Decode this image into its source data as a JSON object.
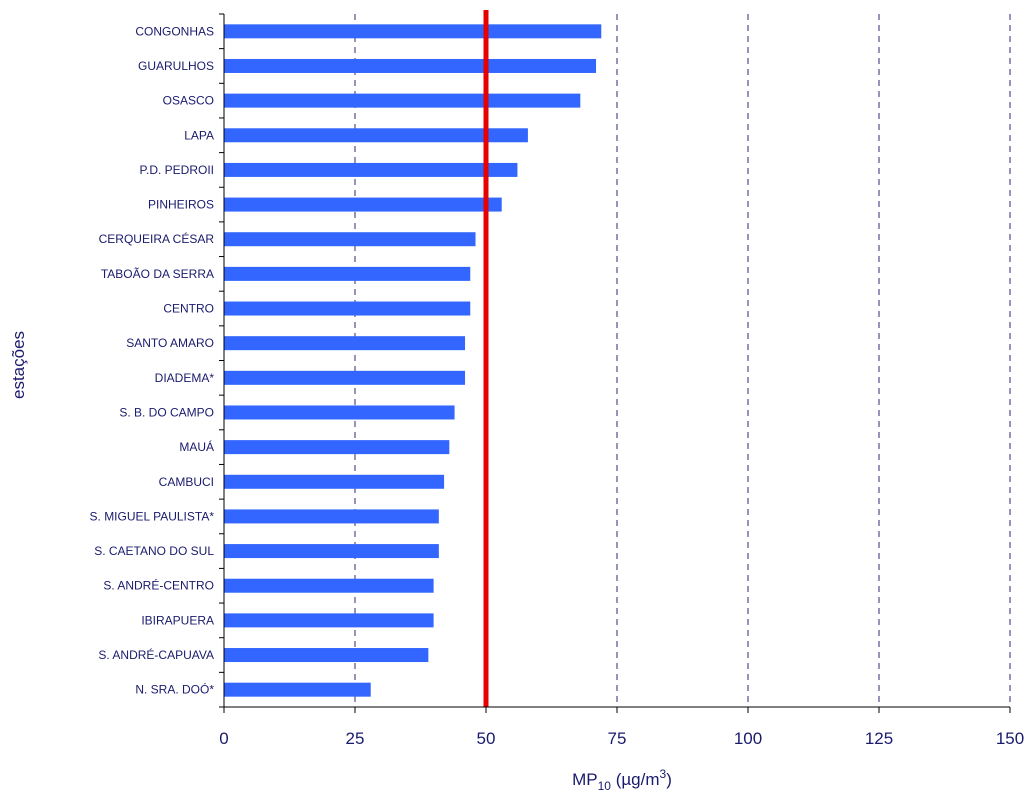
{
  "chart_data": {
    "type": "bar",
    "orientation": "horizontal",
    "categories": [
      "CONGONHAS",
      "GUARULHOS",
      "OSASCO",
      "LAPA",
      "P.D. PEDROII",
      "PINHEIROS",
      "CERQUEIRA CÉSAR",
      "TABOÃO DA SERRA",
      "CENTRO",
      "SANTO AMARO",
      "DIADEMA*",
      "S. B. DO CAMPO",
      "MAUÁ",
      "CAMBUCI",
      "S. MIGUEL PAULISTA*",
      "S. CAETANO DO SUL",
      "S. ANDRÉ-CENTRO",
      "IBIRAPUERA",
      "S. ANDRÉ-CAPUAVA",
      "N. SRA. DOÓ*"
    ],
    "values": [
      72,
      71,
      68,
      58,
      56,
      53,
      48,
      47,
      47,
      46,
      46,
      44,
      43,
      42,
      41,
      41,
      40,
      40,
      39,
      28
    ],
    "xlim": [
      0,
      150
    ],
    "xticks": [
      "0",
      "25",
      "50",
      "75",
      "100",
      "125",
      "150"
    ],
    "xlabel_main": "MP",
    "xlabel_sub": "10",
    "xlabel_unit": " (µg/m",
    "xlabel_sup": "3",
    "xlabel_end": ")",
    "ylabel": "estações",
    "reference_line": 50,
    "grid": "vertical dashed",
    "colors": {
      "bar": "#3366ff",
      "reference": "#e60000",
      "grid": "#2a2a7a",
      "text": "#1a1a6e"
    }
  }
}
